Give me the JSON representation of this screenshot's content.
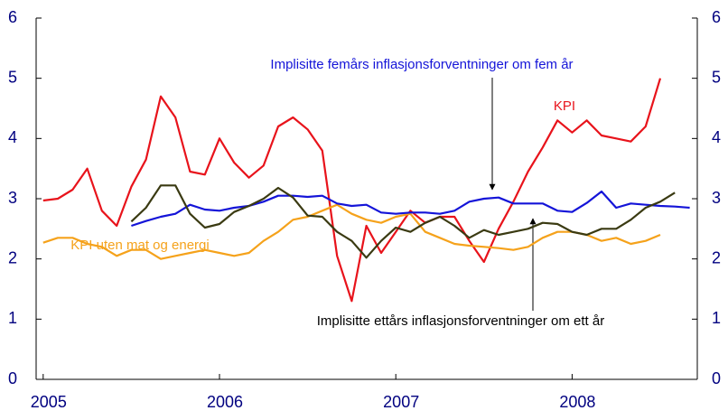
{
  "chart_data": {
    "type": "line",
    "x": [
      2005,
      2005.083,
      2005.167,
      2005.25,
      2005.333,
      2005.417,
      2005.5,
      2005.583,
      2005.667,
      2005.75,
      2005.833,
      2005.917,
      2006,
      2006.083,
      2006.167,
      2006.25,
      2006.333,
      2006.417,
      2006.5,
      2006.583,
      2006.667,
      2006.75,
      2006.833,
      2006.917,
      2007,
      2007.083,
      2007.167,
      2007.25,
      2007.333,
      2007.417,
      2007.5,
      2007.583,
      2007.667,
      2007.75,
      2007.833,
      2007.917,
      2008,
      2008.083,
      2008.167,
      2008.25,
      2008.333,
      2008.417,
      2008.5,
      2008.583,
      2008.667
    ],
    "series": [
      {
        "name": "KPI",
        "color": "#e8131b",
        "values": [
          2.97,
          3.0,
          3.15,
          3.5,
          2.8,
          2.55,
          3.2,
          3.65,
          4.7,
          4.35,
          3.45,
          3.4,
          4.0,
          3.6,
          3.35,
          3.55,
          4.2,
          4.35,
          4.15,
          3.8,
          2.05,
          1.3,
          2.55,
          2.1,
          2.45,
          2.8,
          2.6,
          2.7,
          2.7,
          2.3,
          1.95,
          2.5,
          2.95,
          3.45,
          3.85,
          4.3,
          4.1,
          4.3,
          4.05,
          4.0,
          3.95,
          4.2,
          5.0,
          null,
          null
        ]
      },
      {
        "name": "KPI uten mat og energi",
        "color": "#f5a21b",
        "values": [
          2.27,
          2.35,
          2.35,
          2.25,
          2.2,
          2.05,
          2.15,
          2.15,
          2.0,
          2.05,
          2.1,
          2.15,
          2.1,
          2.05,
          2.1,
          2.3,
          2.45,
          2.65,
          2.7,
          2.8,
          2.9,
          2.75,
          2.65,
          2.6,
          2.7,
          2.75,
          2.45,
          2.35,
          2.25,
          2.22,
          2.2,
          2.18,
          2.15,
          2.2,
          2.35,
          2.45,
          2.45,
          2.4,
          2.3,
          2.35,
          2.25,
          2.3,
          2.4,
          null,
          null
        ]
      },
      {
        "name": "Implisitte femårs inflasjonsforventninger om fem år",
        "color": "#1414d8",
        "values": [
          null,
          null,
          null,
          null,
          null,
          null,
          2.55,
          2.63,
          2.7,
          2.75,
          2.9,
          2.82,
          2.8,
          2.85,
          2.88,
          2.95,
          3.05,
          3.05,
          3.03,
          3.05,
          2.92,
          2.88,
          2.9,
          2.77,
          2.75,
          2.77,
          2.77,
          2.75,
          2.8,
          2.95,
          3.0,
          3.02,
          2.92,
          2.92,
          2.92,
          2.8,
          2.78,
          2.93,
          3.12,
          2.85,
          2.92,
          2.9,
          2.88,
          2.87,
          2.85
        ]
      },
      {
        "name": "Implisitte ettårs inflasjonsforventninger om ett år",
        "color": "#3a3a12",
        "values": [
          null,
          null,
          null,
          null,
          null,
          null,
          2.62,
          2.85,
          3.22,
          3.22,
          2.75,
          2.52,
          2.58,
          2.78,
          2.88,
          3.0,
          3.18,
          3.02,
          2.72,
          2.7,
          2.45,
          2.3,
          2.02,
          2.3,
          2.52,
          2.45,
          2.6,
          2.7,
          2.55,
          2.35,
          2.48,
          2.4,
          2.45,
          2.5,
          2.6,
          2.58,
          2.45,
          2.4,
          2.5,
          2.5,
          2.65,
          2.85,
          2.95,
          3.1,
          null
        ]
      }
    ],
    "xlim": [
      2004.96,
      2008.71
    ],
    "xticks": [
      2005,
      2006,
      2007,
      2008
    ],
    "ylim": [
      0,
      6
    ],
    "yticks": [
      0,
      1,
      2,
      3,
      4,
      5,
      6
    ],
    "y2lim": [
      0,
      6
    ],
    "y2ticks": [
      0,
      1,
      2,
      3,
      4,
      5,
      6
    ]
  }
}
